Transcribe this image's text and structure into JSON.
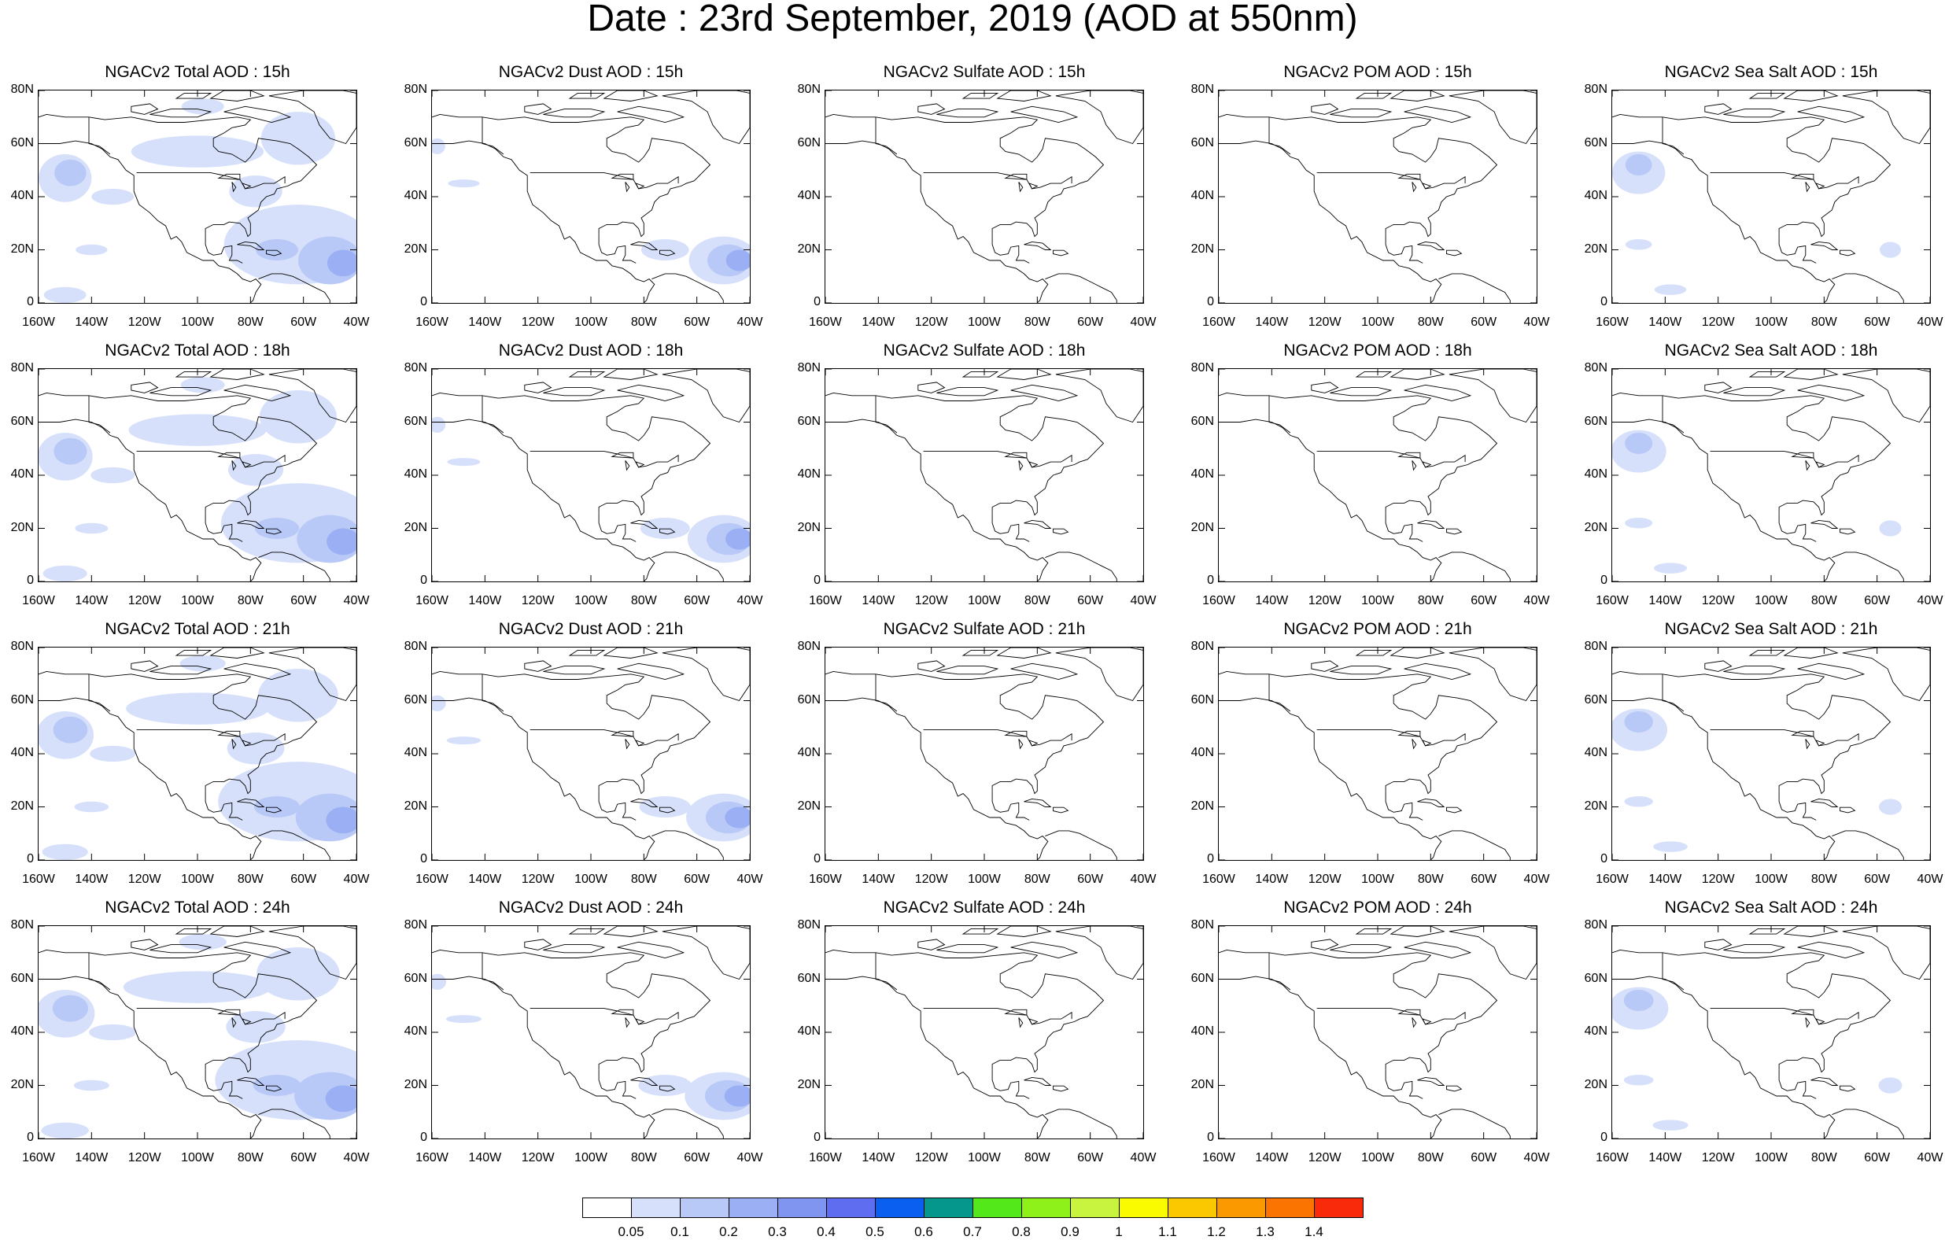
{
  "title": "Date : 23rd September, 2019 (AOD at 550nm)",
  "row_hours": [
    "15h",
    "18h",
    "21h",
    "24h"
  ],
  "columns": [
    {
      "key": "total",
      "titles": [
        "NGACv2 Total AOD : 15h",
        "NGACv2 Total AOD : 18h",
        "NGACv2 Total AOD : 21h",
        "NGACv2 Total AOD : 24h"
      ]
    },
    {
      "key": "dust",
      "titles": [
        "NGACv2 Dust AOD : 15h",
        "NGACv2 Dust AOD : 18h",
        "NGACv2 Dust AOD : 21h",
        "NGACv2 Dust AOD : 24h"
      ]
    },
    {
      "key": "sulfate",
      "titles": [
        "NGACv2 Sulfate AOD : 15h",
        "NGACv2 Sulfate AOD : 18h",
        "NGACv2 Sulfate AOD : 21h",
        "NGACv2 Sulfate AOD : 24h"
      ]
    },
    {
      "key": "pom",
      "titles": [
        "NGACv2 POM AOD : 15h",
        "NGACv2 POM AOD : 18h",
        "NGACv2 POM AOD : 21h",
        "NGACv2 POM AOD : 24h"
      ]
    },
    {
      "key": "seasalt",
      "titles": [
        "NGACv2 Sea Salt AOD : 15h",
        "NGACv2 Sea Salt AOD : 18h",
        "NGACv2 Sea Salt AOD : 21h",
        "NGACv2 Sea Salt  AOD : 24h"
      ]
    }
  ],
  "lat_labels": [
    "80N",
    "60N",
    "40N",
    "20N",
    "0"
  ],
  "lon_labels": [
    "160W",
    "140W",
    "120W",
    "100W",
    "80W",
    "60W",
    "40W"
  ],
  "lon_range": [
    -160,
    -40
  ],
  "lat_range": [
    0,
    80
  ],
  "colorbar": {
    "labels": [
      "0.05",
      "0.1",
      "0.2",
      "0.3",
      "0.4",
      "0.5",
      "0.6",
      "0.7",
      "0.8",
      "0.9",
      "1",
      "1.1",
      "1.2",
      "1.3",
      "1.4"
    ],
    "colors": [
      "#ffffff",
      "#d6e0fb",
      "#b8c8f7",
      "#9aaff4",
      "#7f95f0",
      "#5f6ef0",
      "#0a5ef0",
      "#05968c",
      "#52e81a",
      "#8ef21a",
      "#c8f43f",
      "#fbfb00",
      "#fbc800",
      "#fb9900",
      "#fb7300",
      "#f92a0a"
    ]
  },
  "chart_data": {
    "type": "heatmap",
    "title": "Date : 23rd September, 2019 (AOD at 550nm)",
    "x_range": [
      -160,
      -40
    ],
    "y_range": [
      0,
      80
    ],
    "panels": [
      {
        "title": "NGACv2 Total AOD : 15h",
        "regions": [
          {
            "lon": -150,
            "lat": 48,
            "level": "0.05-0.1"
          },
          {
            "lon": -45,
            "lat": 16,
            "level": "0.3-0.4"
          },
          {
            "lon": -70,
            "lat": 20,
            "level": "0.1-0.2"
          },
          {
            "lon": -90,
            "lat": 74,
            "level": "0.05-0.1"
          }
        ]
      },
      {
        "title": "NGACv2 Dust AOD : 15h",
        "regions": [
          {
            "lon": -45,
            "lat": 16,
            "level": "0.2-0.3"
          },
          {
            "lon": -72,
            "lat": 20,
            "level": "0.05-0.1"
          }
        ]
      },
      {
        "title": "NGACv2 Sulfate AOD : 15h",
        "regions": []
      },
      {
        "title": "NGACv2 POM AOD : 15h",
        "regions": []
      },
      {
        "title": "NGACv2 Sea Salt AOD : 15h",
        "regions": [
          {
            "lon": -145,
            "lat": 50,
            "level": "0.05-0.1"
          }
        ]
      }
    ]
  }
}
